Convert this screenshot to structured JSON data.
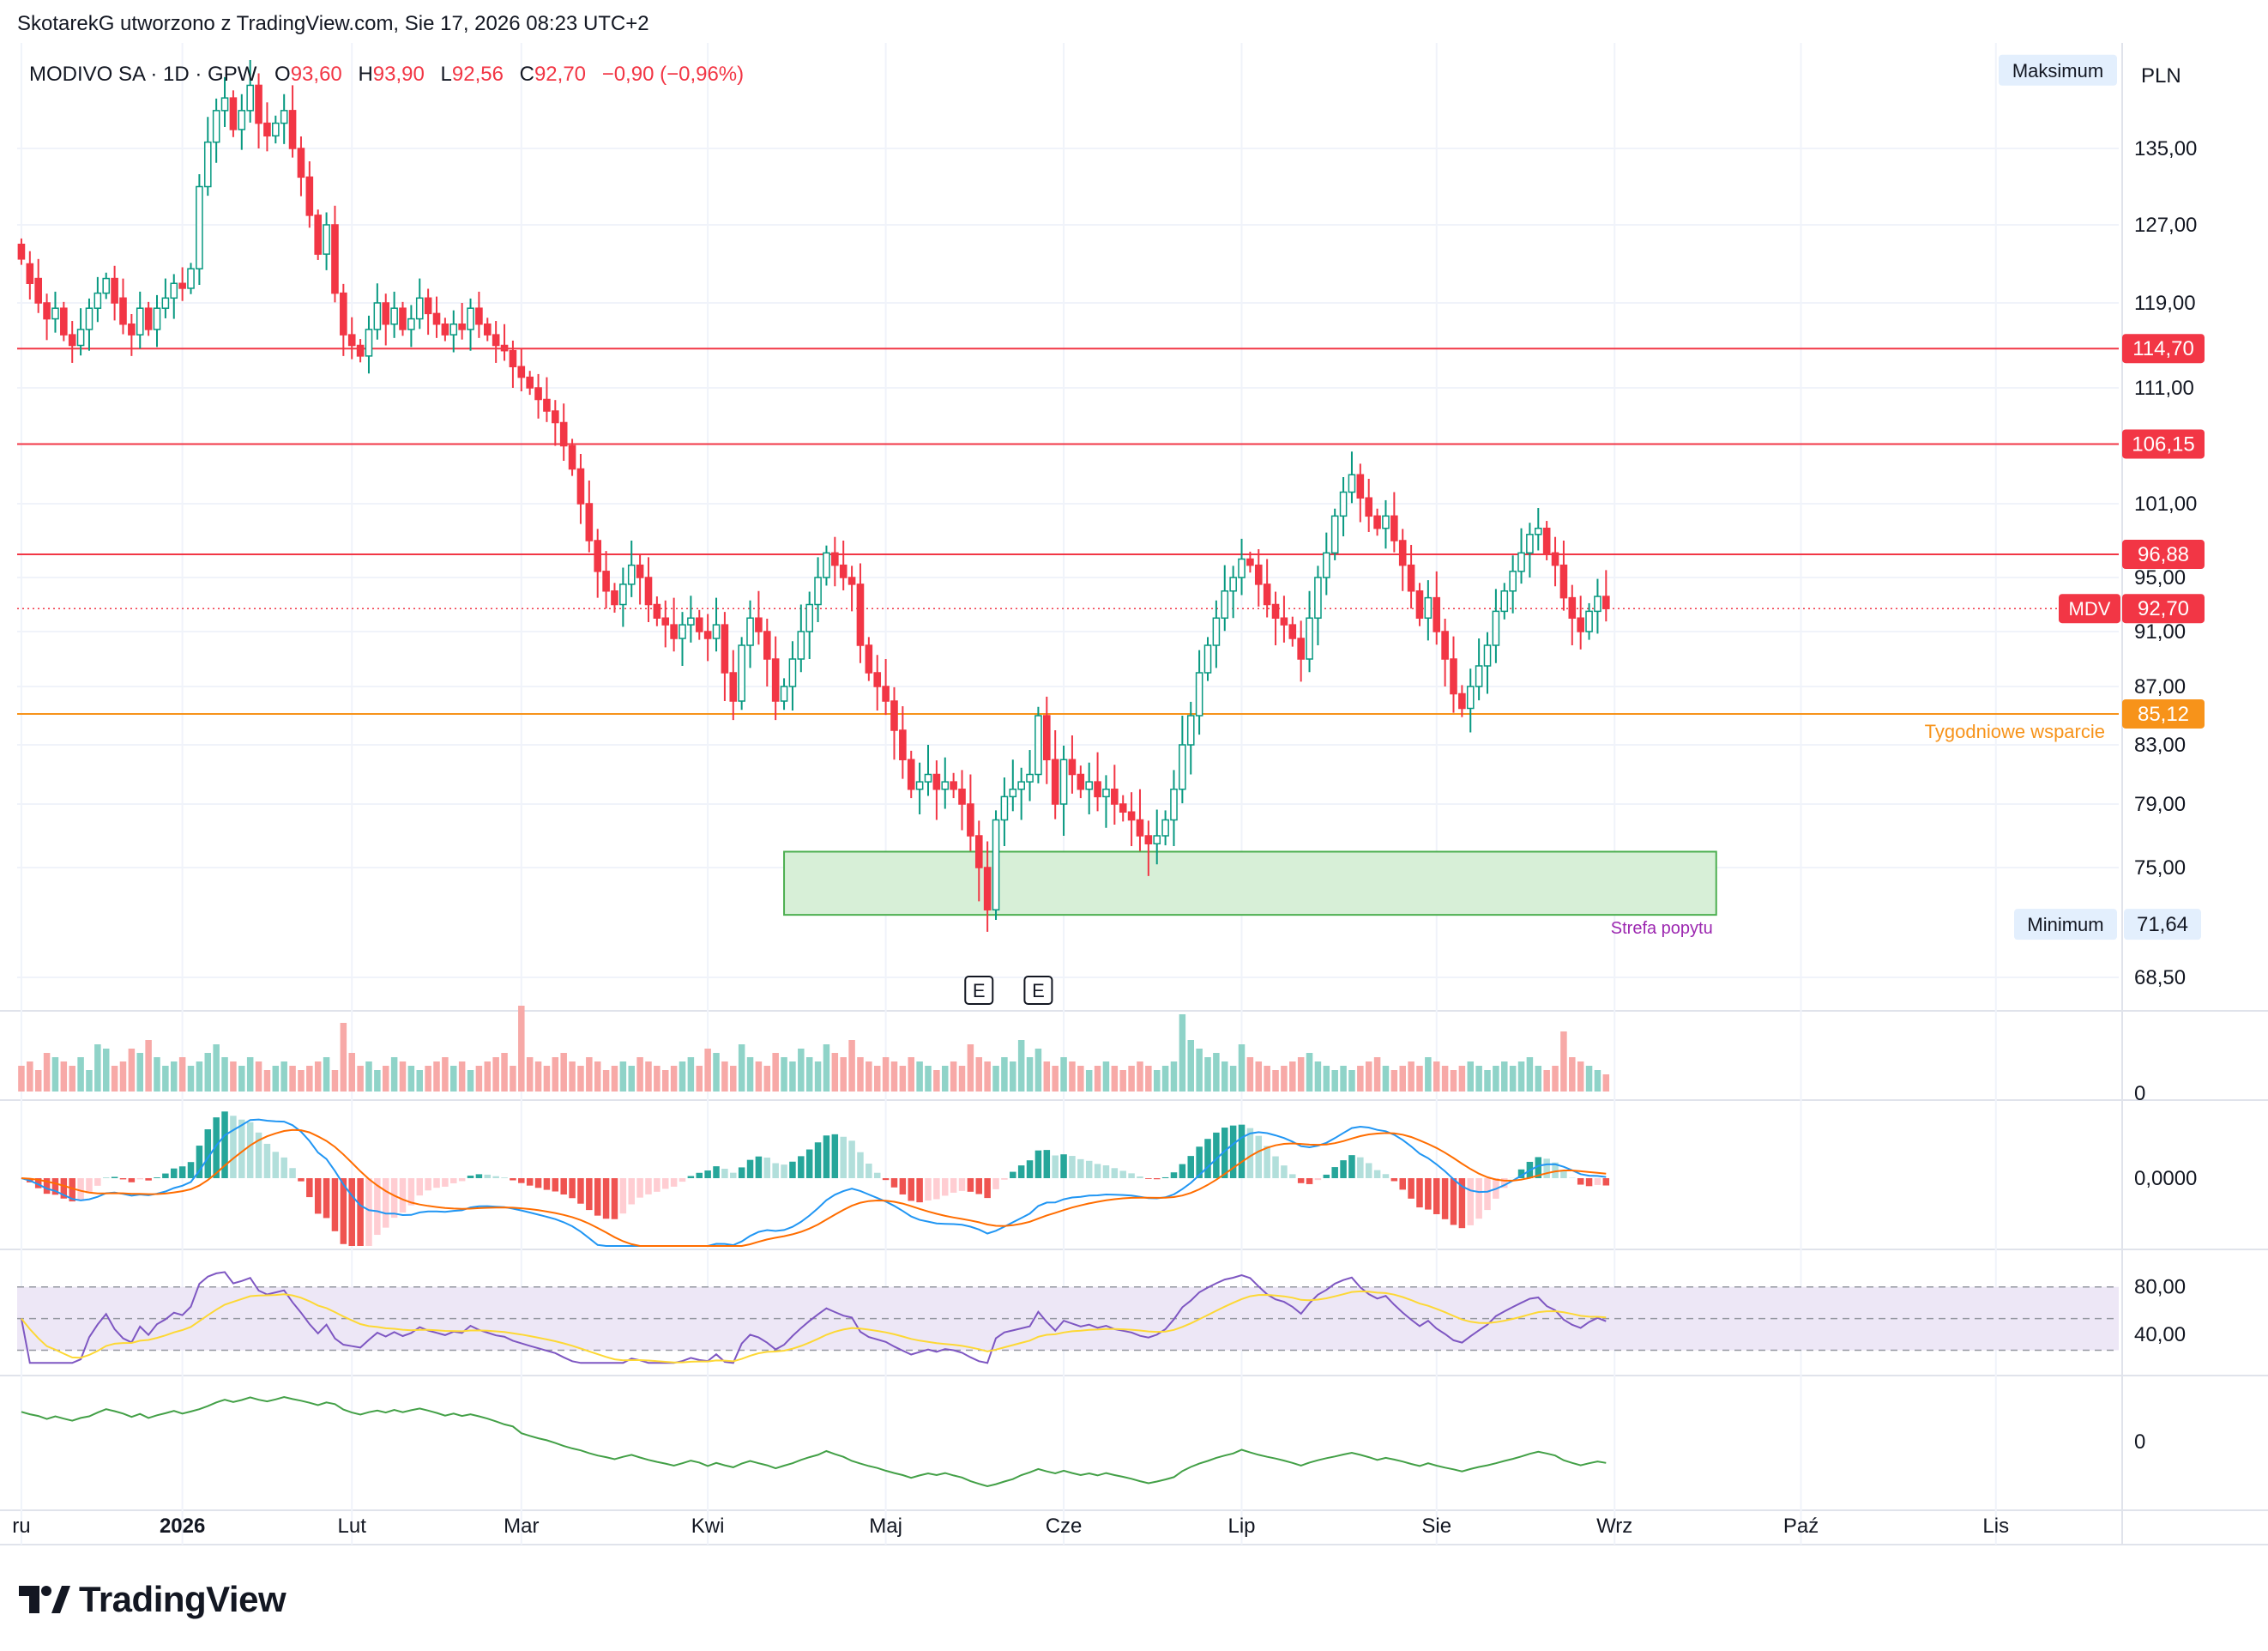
{
  "header": {
    "attribution": "SkotarekG utworzono z TradingView.com, Sie 17, 2026 08:23 UTC+2"
  },
  "brand": {
    "name": "TradingView"
  },
  "colors": {
    "up": "#089981",
    "down": "#f23645",
    "support": "#f7931a",
    "zone_fill": "#d7efd7",
    "zone_border": "#4caf50",
    "rsi_band": "#ede7f6"
  },
  "chart_data": {
    "type": "candlestick",
    "symbol_line": {
      "name": "MODIVO SA · 1D · GPW",
      "o_label": "O",
      "o": "93,60",
      "h_label": "H",
      "h": "93,90",
      "l_label": "L",
      "l": "92,56",
      "c_label": "C",
      "c": "92,70",
      "change": "−0,90 (−0,96%)"
    },
    "currency": "PLN",
    "price_axis": {
      "min": 66,
      "max": 142,
      "ticks": [
        "135,00",
        "127,00",
        "119,00",
        "111,00",
        "101,00",
        "95,00",
        "91,00",
        "87,00",
        "83,00",
        "79,00",
        "75,00",
        "68,50"
      ]
    },
    "max_label": {
      "text": "Maksimum",
      "value": 141.2
    },
    "min_label": {
      "text": "Minimum",
      "value_text": "71,64",
      "value": 71.64
    },
    "current": {
      "ticker": "MDV",
      "value_text": "92,70",
      "value": 92.7
    },
    "resistance_lines": [
      {
        "value": 114.7,
        "label": "114,70"
      },
      {
        "value": 106.15,
        "label": "106,15"
      },
      {
        "value": 96.88,
        "label": "96,88"
      }
    ],
    "support_line": {
      "value": 85.12,
      "label": "85,12",
      "text": "Tygodniowe wsparcie"
    },
    "demand_zone": {
      "top": 76.0,
      "bottom": 72.2,
      "start_index": 90,
      "end_index": 200,
      "text": "Strefa popytu"
    },
    "earnings_markers": [
      {
        "index": 113,
        "text": "E"
      },
      {
        "index": 120,
        "text": "E"
      }
    ],
    "time_axis": [
      {
        "label": "ru",
        "index": 0
      },
      {
        "label": "2026",
        "index": 19
      },
      {
        "label": "Lut",
        "index": 39
      },
      {
        "label": "Mar",
        "index": 59
      },
      {
        "label": "Kwi",
        "index": 81
      },
      {
        "label": "Maj",
        "index": 102
      },
      {
        "label": "Cze",
        "index": 123
      },
      {
        "label": "Lip",
        "index": 144
      },
      {
        "label": "Sie",
        "index": 167
      },
      {
        "label": "Wrz",
        "index": 188
      },
      {
        "label": "Paź",
        "index": 210
      },
      {
        "label": "Lis",
        "index": 233
      }
    ],
    "bars_total": 248,
    "close": [
      123.5,
      121.0,
      119.0,
      117.5,
      118.5,
      116.0,
      115.0,
      116.5,
      118.5,
      120.0,
      121.5,
      119.0,
      117.0,
      116.0,
      118.5,
      116.5,
      118.5,
      119.5,
      121.0,
      120.5,
      122.5,
      131.0,
      135.5,
      138.0,
      139.0,
      136.5,
      138.0,
      140.0,
      137.0,
      136.0,
      137.0,
      138.0,
      135.0,
      132.0,
      128.0,
      124.0,
      127.0,
      120.0,
      116.0,
      115.0,
      114.0,
      116.5,
      119.0,
      117.0,
      118.5,
      116.5,
      117.5,
      119.5,
      118.0,
      117.0,
      116.0,
      117.0,
      116.5,
      118.5,
      117.0,
      116.0,
      115.0,
      114.5,
      113.0,
      112.0,
      111.0,
      110.0,
      109.0,
      108.0,
      106.0,
      104.0,
      101.0,
      98.0,
      95.5,
      94.0,
      93.0,
      94.5,
      96.0,
      95.0,
      93.0,
      92.0,
      91.5,
      90.5,
      91.5,
      92.0,
      91.0,
      90.5,
      91.5,
      88.0,
      86.0,
      90.0,
      92.0,
      91.0,
      89.0,
      86.0,
      87.0,
      89.0,
      91.0,
      93.0,
      95.0,
      97.0,
      96.0,
      95.0,
      94.5,
      90.0,
      88.0,
      87.0,
      86.0,
      84.0,
      82.0,
      80.0,
      80.5,
      81.0,
      80.0,
      80.5,
      80.0,
      79.0,
      77.0,
      75.0,
      72.5,
      78.0,
      79.5,
      80.0,
      80.5,
      81.0,
      85.0,
      82.0,
      79.0,
      82.0,
      81.0,
      80.0,
      80.5,
      79.5,
      80.0,
      79.0,
      78.5,
      78.0,
      77.0,
      76.5,
      77.0,
      78.0,
      80.0,
      83.0,
      85.0,
      88.0,
      90.0,
      92.0,
      94.0,
      95.0,
      96.5,
      96.0,
      94.5,
      93.0,
      92.0,
      91.5,
      90.5,
      89.0,
      92.0,
      95.0,
      97.0,
      100.0,
      102.0,
      103.5,
      101.5,
      100.0,
      99.0,
      100.0,
      98.0,
      96.0,
      94.0,
      92.0,
      93.5,
      91.0,
      89.0,
      86.5,
      85.5,
      87.0,
      88.5,
      90.0,
      92.5,
      94.0,
      95.5,
      97.0,
      98.5,
      99.0,
      97.0,
      96.0,
      93.5,
      92.0,
      91.0,
      92.5,
      93.6,
      92.7
    ],
    "open": [
      125.0,
      123.0,
      121.5,
      119.0,
      117.5,
      118.5,
      116.0,
      115.0,
      116.5,
      118.5,
      120.0,
      121.5,
      119.5,
      117.0,
      116.0,
      118.5,
      116.5,
      118.5,
      119.5,
      121.0,
      120.5,
      122.5,
      131.0,
      135.5,
      138.0,
      139.0,
      136.5,
      138.0,
      140.0,
      137.0,
      136.0,
      137.0,
      138.0,
      135.0,
      132.0,
      128.0,
      124.0,
      127.0,
      120.0,
      116.0,
      115.0,
      114.0,
      116.5,
      119.0,
      117.0,
      118.5,
      116.5,
      117.5,
      119.5,
      118.0,
      117.0,
      116.0,
      117.0,
      116.5,
      118.5,
      117.0,
      116.0,
      115.0,
      114.5,
      113.0,
      112.0,
      111.0,
      110.0,
      109.0,
      108.0,
      106.0,
      104.0,
      101.0,
      98.0,
      95.5,
      94.0,
      93.0,
      94.5,
      96.0,
      95.0,
      93.0,
      92.0,
      91.5,
      90.5,
      91.5,
      92.0,
      91.0,
      90.5,
      91.5,
      88.0,
      86.0,
      90.0,
      92.0,
      91.0,
      89.0,
      86.0,
      87.0,
      89.0,
      91.0,
      93.0,
      95.0,
      97.0,
      96.0,
      95.0,
      94.5,
      90.0,
      88.0,
      87.0,
      86.0,
      84.0,
      82.0,
      80.0,
      80.5,
      81.0,
      80.0,
      80.5,
      80.0,
      79.0,
      77.0,
      75.0,
      72.5,
      78.0,
      79.5,
      80.0,
      80.5,
      81.0,
      85.0,
      82.0,
      79.0,
      82.0,
      81.0,
      80.0,
      80.5,
      79.5,
      80.0,
      79.0,
      78.5,
      78.0,
      77.0,
      76.5,
      77.0,
      78.0,
      80.0,
      83.0,
      85.0,
      88.0,
      90.0,
      92.0,
      94.0,
      95.0,
      96.5,
      96.0,
      94.5,
      93.0,
      92.0,
      91.5,
      90.5,
      89.0,
      92.0,
      95.0,
      97.0,
      100.0,
      102.0,
      103.5,
      101.5,
      100.0,
      99.0,
      100.0,
      98.0,
      96.0,
      94.0,
      92.0,
      93.5,
      91.0,
      89.0,
      86.5,
      85.5,
      87.0,
      88.5,
      90.0,
      92.5,
      94.0,
      95.5,
      97.0,
      98.5,
      99.0,
      97.0,
      96.0,
      93.5,
      92.0,
      91.0,
      92.5,
      93.6
    ],
    "volume": [
      0.3,
      0.35,
      0.25,
      0.45,
      0.4,
      0.35,
      0.3,
      0.4,
      0.25,
      0.55,
      0.5,
      0.3,
      0.35,
      0.5,
      0.45,
      0.6,
      0.4,
      0.3,
      0.35,
      0.4,
      0.3,
      0.35,
      0.45,
      0.55,
      0.4,
      0.35,
      0.3,
      0.4,
      0.35,
      0.25,
      0.3,
      0.35,
      0.3,
      0.25,
      0.3,
      0.35,
      0.4,
      0.25,
      0.8,
      0.45,
      0.3,
      0.35,
      0.25,
      0.3,
      0.4,
      0.35,
      0.3,
      0.25,
      0.3,
      0.35,
      0.4,
      0.3,
      0.35,
      0.25,
      0.3,
      0.35,
      0.4,
      0.45,
      0.3,
      1.0,
      0.4,
      0.35,
      0.3,
      0.4,
      0.45,
      0.35,
      0.3,
      0.4,
      0.35,
      0.25,
      0.3,
      0.35,
      0.3,
      0.4,
      0.35,
      0.3,
      0.25,
      0.3,
      0.35,
      0.4,
      0.3,
      0.5,
      0.45,
      0.35,
      0.3,
      0.55,
      0.4,
      0.35,
      0.3,
      0.45,
      0.4,
      0.35,
      0.5,
      0.4,
      0.35,
      0.55,
      0.45,
      0.4,
      0.6,
      0.4,
      0.35,
      0.3,
      0.4,
      0.35,
      0.3,
      0.4,
      0.35,
      0.3,
      0.25,
      0.3,
      0.35,
      0.3,
      0.55,
      0.4,
      0.35,
      0.3,
      0.4,
      0.35,
      0.6,
      0.4,
      0.5,
      0.35,
      0.3,
      0.4,
      0.35,
      0.3,
      0.25,
      0.3,
      0.35,
      0.3,
      0.25,
      0.3,
      0.35,
      0.3,
      0.25,
      0.3,
      0.35,
      0.9,
      0.6,
      0.5,
      0.4,
      0.45,
      0.35,
      0.3,
      0.55,
      0.4,
      0.35,
      0.3,
      0.25,
      0.3,
      0.35,
      0.4,
      0.45,
      0.35,
      0.3,
      0.25,
      0.3,
      0.25,
      0.3,
      0.35,
      0.4,
      0.3,
      0.25,
      0.3,
      0.35,
      0.3,
      0.4,
      0.35,
      0.3,
      0.25,
      0.3,
      0.35,
      0.3,
      0.25,
      0.3,
      0.35,
      0.3,
      0.35,
      0.4,
      0.3,
      0.25,
      0.3,
      0.7,
      0.4,
      0.35,
      0.3,
      0.25,
      0.2
    ],
    "volume_axis": [
      "0"
    ],
    "macd_axis": [
      "0,0000"
    ],
    "rsi_axis": [
      "80,00",
      "40,00"
    ],
    "rsi_levels": {
      "upper": 70,
      "middle": 50,
      "lower": 30,
      "min": 20,
      "max": 85
    },
    "obv_axis": [
      "0"
    ]
  }
}
